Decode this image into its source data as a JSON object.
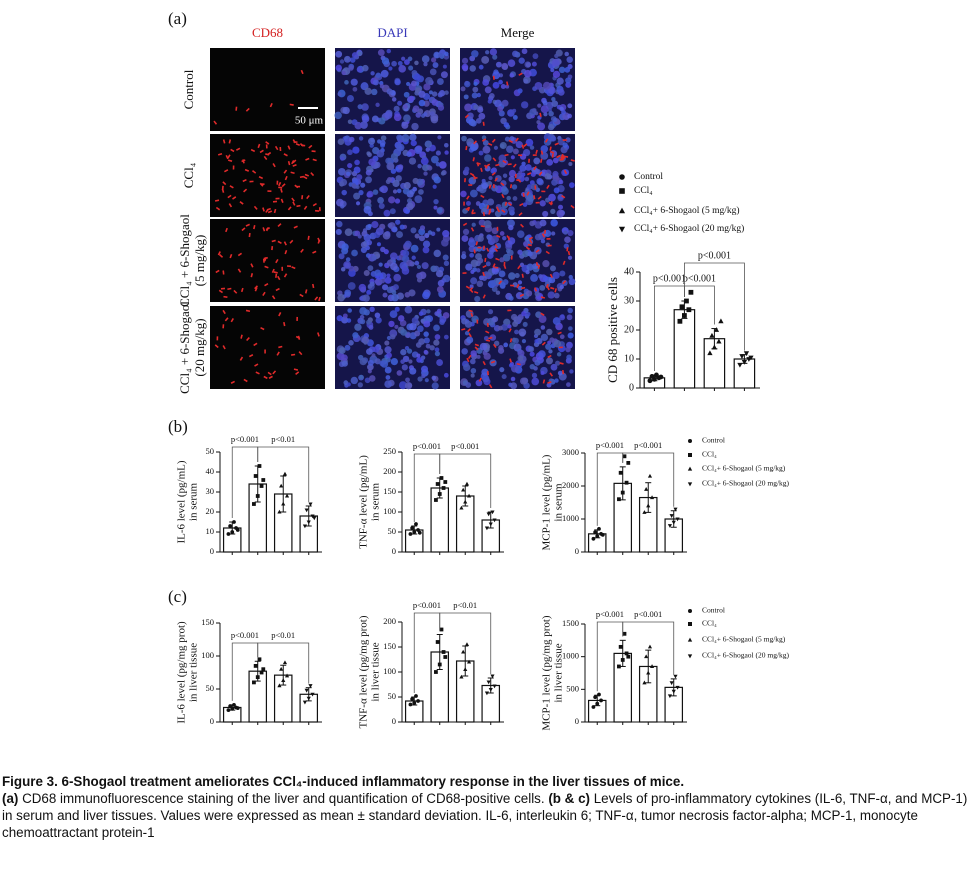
{
  "panel_labels": [
    "(a)",
    "(b)",
    "(c)"
  ],
  "images": {
    "columns": [
      "CD68",
      "DAPI",
      "Merge"
    ],
    "rows": [
      [
        "Control"
      ],
      [
        "CCl₄"
      ],
      [
        "CCl₄ + 6-Shogaol",
        "(5 mg/kg)"
      ],
      [
        "CCl₄ + 6-Shogaol",
        "(20 mg/kg)"
      ]
    ],
    "scale_bar": "50 μm"
  },
  "legends": [
    {
      "entries": [
        "Control",
        "CCl₄",
        "CCl₄+ 6-Shogaol (5 mg/kg)",
        "CCl₄+ 6-Shogaol (20 mg/kg)"
      ]
    },
    {
      "entries": [
        "Control",
        "CCl₄",
        "CCl₄+ 6-Shogaol (5 mg/kg)",
        "CCl₄+ 6-Shogaol (20 mg/kg)"
      ]
    },
    {
      "entries": [
        "Control",
        "CCl₄",
        "CCl₄+ 6-Shogaol (5 mg/kg)",
        "CCl₄+ 6-Shogaol (20 mg/kg)"
      ]
    }
  ],
  "chart_data": [
    {
      "type": "bar",
      "ylabel": [
        "CD 68 positive cells"
      ],
      "categories": [
        null,
        null,
        null,
        null
      ],
      "values": [
        3.5,
        27,
        17,
        10
      ],
      "errors": [
        1,
        3,
        3.5,
        1.5
      ],
      "points": [
        [
          2.5,
          3,
          3.5,
          4,
          4.5,
          3.8
        ],
        [
          23,
          25,
          27,
          28,
          30,
          33
        ],
        [
          12,
          14,
          16,
          18,
          20,
          23
        ],
        [
          8,
          9,
          10,
          11,
          12,
          10.5
        ]
      ],
      "ylim": [
        0,
        40
      ],
      "yticks": [
        0,
        10,
        20,
        30,
        40
      ],
      "annotations": [
        "p<0.001",
        "p<0.001",
        "p<0.001"
      ]
    },
    {
      "type": "bar",
      "ylabel": [
        "IL-6 level (pg/mL)",
        "in serum"
      ],
      "categories": [
        null,
        null,
        null,
        null
      ],
      "values": [
        12,
        34,
        29,
        18
      ],
      "errors": [
        3,
        9,
        9,
        5
      ],
      "points": [
        [
          9,
          10,
          12,
          13,
          15,
          11
        ],
        [
          24,
          28,
          33,
          38,
          43,
          36
        ],
        [
          20,
          24,
          28,
          33,
          39
        ],
        [
          13,
          15,
          18,
          21,
          24,
          17
        ]
      ],
      "ylim": [
        0,
        50
      ],
      "yticks": [
        0,
        10,
        20,
        30,
        40,
        50
      ],
      "annotations": [
        "p<0.001",
        "p<0.01"
      ]
    },
    {
      "type": "bar",
      "ylabel": [
        "TNF-α level (pg/mL)",
        "in serum"
      ],
      "categories": [
        null,
        null,
        null,
        null
      ],
      "values": [
        55,
        160,
        140,
        80
      ],
      "errors": [
        10,
        25,
        25,
        20
      ],
      "points": [
        [
          45,
          50,
          55,
          60,
          70,
          48
        ],
        [
          130,
          145,
          160,
          170,
          185,
          175
        ],
        [
          110,
          125,
          140,
          155,
          170
        ],
        [
          60,
          70,
          80,
          95,
          100
        ]
      ],
      "ylim": [
        0,
        250
      ],
      "yticks": [
        0,
        50,
        100,
        150,
        200,
        250
      ],
      "annotations": [
        "p<0.001",
        "p<0.001"
      ]
    },
    {
      "type": "bar",
      "ylabel": [
        "MCP-1 level (pg/mL)",
        "in serum"
      ],
      "categories": [
        null,
        null,
        null,
        null
      ],
      "values": [
        550,
        2080,
        1650,
        1000
      ],
      "errors": [
        120,
        500,
        450,
        250
      ],
      "points": [
        [
          400,
          480,
          550,
          600,
          700,
          520
        ],
        [
          1600,
          1800,
          2100,
          2400,
          2900,
          2700
        ],
        [
          1200,
          1400,
          1650,
          1900,
          2300
        ],
        [
          800,
          900,
          1000,
          1100,
          1300
        ]
      ],
      "ylim": [
        0,
        3000
      ],
      "yticks": [
        0,
        1000,
        2000,
        3000
      ],
      "annotations": [
        "p<0.001",
        "p<0.001"
      ]
    },
    {
      "type": "bar",
      "ylabel": [
        "IL-6 level (pg/mg prot)",
        "in liver tissue"
      ],
      "categories": [
        null,
        null,
        null,
        null
      ],
      "values": [
        22,
        77,
        71,
        42
      ],
      "errors": [
        4,
        15,
        15,
        10
      ],
      "points": [
        [
          18,
          20,
          22,
          24,
          26,
          21
        ],
        [
          60,
          68,
          75,
          85,
          95,
          80
        ],
        [
          55,
          63,
          70,
          80,
          90
        ],
        [
          30,
          36,
          42,
          48,
          55
        ]
      ],
      "ylim": [
        0,
        150
      ],
      "yticks": [
        0,
        50,
        100,
        150
      ],
      "annotations": [
        "p<0.001",
        "p<0.01"
      ]
    },
    {
      "type": "bar",
      "ylabel": [
        "TNF-α level (pg/mg prot)",
        "in liver tissue"
      ],
      "categories": [
        null,
        null,
        null,
        null
      ],
      "values": [
        42,
        140,
        122,
        73
      ],
      "errors": [
        8,
        35,
        30,
        15
      ],
      "points": [
        [
          35,
          38,
          42,
          46,
          52
        ],
        [
          100,
          115,
          140,
          160,
          185,
          130
        ],
        [
          90,
          105,
          120,
          140,
          155
        ],
        [
          58,
          65,
          72,
          80,
          92
        ]
      ],
      "ylim": [
        0,
        200
      ],
      "yticks": [
        0,
        50,
        100,
        150,
        200
      ],
      "annotations": [
        "p<0.001",
        "p<0.01"
      ]
    },
    {
      "type": "bar",
      "ylabel": [
        "MCP-1 level (pg/mg prot)",
        "in liver tissue"
      ],
      "categories": [
        null,
        null,
        null,
        null
      ],
      "values": [
        330,
        1050,
        850,
        530
      ],
      "errors": [
        80,
        200,
        250,
        130
      ],
      "points": [
        [
          230,
          280,
          330,
          380,
          420
        ],
        [
          850,
          950,
          1050,
          1150,
          1350,
          1000
        ],
        [
          600,
          750,
          850,
          1000,
          1150
        ],
        [
          400,
          470,
          530,
          600,
          700
        ]
      ],
      "ylim": [
        0,
        1500
      ],
      "yticks": [
        0,
        500,
        1000,
        1500
      ],
      "annotations": [
        "p<0.001",
        "p<0.001"
      ]
    }
  ],
  "caption": {
    "title": "Figure 3. 6-Shogaol treatment ameliorates CCl₄-induced inflammatory response in the liver tissues of mice.",
    "body": [
      {
        "text": "(a)",
        "bold": true
      },
      {
        "text": " CD68 immunofluorescence staining of the liver and quantification of CD68-positive cells. ",
        "bold": false
      },
      {
        "text": "(b & c)",
        "bold": true
      },
      {
        "text": " Levels of pro-inflammatory cytokines (IL-6, TNF-α, and MCP-1) in serum and liver tissues. Values were expressed as mean ± standard deviation. IL-6, interleukin 6; TNF-α, tumor necrosis factor-alpha; MCP-1, monocyte chemoattractant protein-1",
        "bold": false
      }
    ]
  }
}
